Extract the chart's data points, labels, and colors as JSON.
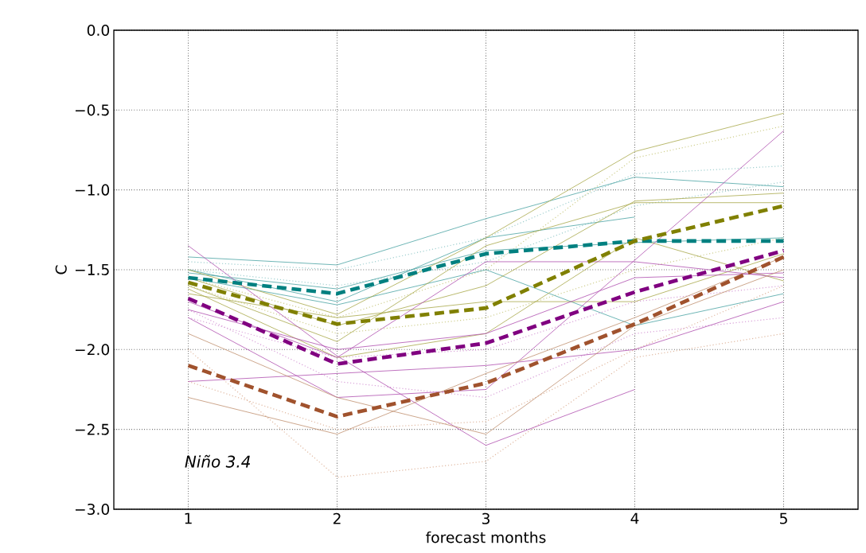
{
  "chart_data": {
    "type": "line",
    "xlabel": "forecast months",
    "ylabel": "C",
    "x": [
      1,
      2,
      3,
      4,
      5
    ],
    "xlim": [
      0.5,
      5.5
    ],
    "ylim": [
      -3.0,
      0.0
    ],
    "xticks": [
      1,
      2,
      3,
      4,
      5
    ],
    "yticks": [
      {
        "value": -3.0,
        "label": "−3.0"
      },
      {
        "value": -2.5,
        "label": "−2.5"
      },
      {
        "value": -2.0,
        "label": "−2.0"
      },
      {
        "value": -1.5,
        "label": "−1.5"
      },
      {
        "value": -1.0,
        "label": "−1.0"
      },
      {
        "value": -0.5,
        "label": "−0.5"
      },
      {
        "value": 0.0,
        "label": "0.0"
      }
    ],
    "grid": true,
    "marker": "none",
    "annotations": [
      "Niño 3.4"
    ],
    "series": [
      {
        "line_style": "dotted",
        "color": "#9fcfcf",
        "values": [
          -1.45,
          -1.5,
          -1.3,
          -0.9,
          -0.85
        ]
      },
      {
        "line_style": "dotted",
        "color": "#9fcfcf",
        "values": [
          -1.5,
          -1.6,
          -1.45,
          -1.1,
          -0.95
        ]
      },
      {
        "line_style": "dotted",
        "color": "#cfcf8f",
        "values": [
          -1.55,
          -1.8,
          -1.5,
          -0.8,
          -0.6
        ]
      },
      {
        "line_style": "dotted",
        "color": "#cfcf8f",
        "values": [
          -1.6,
          -1.9,
          -1.8,
          -1.5,
          -1.3
        ]
      },
      {
        "line_style": "dotted",
        "color": "#d8a0d8",
        "values": [
          -1.75,
          -2.2,
          -2.3,
          -1.9,
          -1.8
        ]
      },
      {
        "line_style": "dotted",
        "color": "#d8a0d8",
        "values": [
          -1.8,
          -2.05,
          -2.0,
          -1.7,
          -1.6
        ]
      },
      {
        "line_style": "dotted",
        "color": "#e0b8a0",
        "values": [
          -2.0,
          -2.8,
          -2.7,
          -2.05,
          -1.9
        ]
      },
      {
        "line_style": "dotted",
        "color": "#e0b8a0",
        "values": [
          -2.2,
          -2.5,
          -2.45,
          -2.0,
          -1.6
        ]
      },
      {
        "line_style": "solid",
        "color": "#4aa3a3",
        "values": [
          -1.42,
          -1.47,
          -1.18,
          -0.92,
          -0.98
        ]
      },
      {
        "line_style": "solid",
        "color": "#4aa3a3",
        "values": [
          -1.5,
          -1.7,
          -1.3,
          -1.17,
          null
        ]
      },
      {
        "line_style": "solid",
        "color": "#4aa3a3",
        "values": [
          -1.55,
          -1.72,
          -1.5,
          -1.85,
          -1.65
        ]
      },
      {
        "line_style": "solid",
        "color": "#4aa3a3",
        "values": [
          -1.52,
          -1.62,
          -1.38,
          -1.33,
          -1.3
        ]
      },
      {
        "line_style": "solid",
        "color": "#a8a84a",
        "values": [
          -1.5,
          -1.78,
          -1.3,
          -0.76,
          -0.52
        ]
      },
      {
        "line_style": "solid",
        "color": "#a8a84a",
        "values": [
          -1.55,
          -1.85,
          -1.6,
          -1.07,
          -1.02
        ]
      },
      {
        "line_style": "solid",
        "color": "#a8a84a",
        "values": [
          -1.6,
          -1.95,
          -1.35,
          -1.08,
          -1.08
        ]
      },
      {
        "line_style": "solid",
        "color": "#a8a84a",
        "values": [
          -1.62,
          -2.05,
          -1.9,
          -1.3,
          -1.57
        ]
      },
      {
        "line_style": "solid",
        "color": "#a8a84a",
        "values": [
          -1.65,
          -1.8,
          -1.7,
          -1.7,
          -1.4
        ]
      },
      {
        "line_style": "solid",
        "color": "#b050b0",
        "values": [
          -1.35,
          -2.04,
          -2.6,
          -2.25,
          null
        ]
      },
      {
        "line_style": "solid",
        "color": "#b050b0",
        "values": [
          -2.2,
          -2.15,
          -2.1,
          -2.0,
          -1.7
        ]
      },
      {
        "line_style": "solid",
        "color": "#b050b0",
        "values": [
          -1.8,
          -2.3,
          -2.25,
          -1.44,
          -0.63
        ]
      },
      {
        "line_style": "solid",
        "color": "#b050b0",
        "values": [
          -1.7,
          -2.05,
          -1.45,
          -1.45,
          -1.55
        ]
      },
      {
        "line_style": "solid",
        "color": "#b050b0",
        "values": [
          -1.75,
          -2.0,
          -1.9,
          -1.55,
          -1.52
        ]
      },
      {
        "line_style": "solid",
        "color": "#c09070",
        "values": [
          -1.9,
          -2.3,
          -2.53,
          -1.85,
          -1.5
        ]
      },
      {
        "line_style": "solid",
        "color": "#c09070",
        "values": [
          -2.3,
          -2.53,
          -2.15,
          -1.8,
          -1.42
        ]
      },
      {
        "line_style": "dashed",
        "color": "#008080",
        "values": [
          -1.55,
          -1.65,
          -1.4,
          -1.32,
          -1.32
        ]
      },
      {
        "line_style": "dashed",
        "color": "#808000",
        "values": [
          -1.58,
          -1.84,
          -1.74,
          -1.32,
          -1.1
        ]
      },
      {
        "line_style": "dashed",
        "color": "#800080",
        "values": [
          -1.68,
          -2.09,
          -1.96,
          -1.64,
          -1.38
        ]
      },
      {
        "line_style": "dashed",
        "color": "#a0522d",
        "values": [
          -2.1,
          -2.42,
          -2.21,
          -1.84,
          -1.42
        ]
      }
    ]
  }
}
